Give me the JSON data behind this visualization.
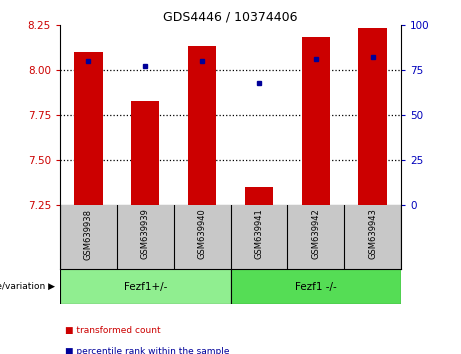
{
  "title": "GDS4446 / 10374406",
  "samples": [
    "GSM639938",
    "GSM639939",
    "GSM639940",
    "GSM639941",
    "GSM639942",
    "GSM639943"
  ],
  "bar_values": [
    8.1,
    7.83,
    8.13,
    7.35,
    8.18,
    8.23
  ],
  "bar_bottom": 7.25,
  "dot_values": [
    80,
    77,
    80,
    68,
    81,
    82
  ],
  "ylim_left": [
    7.25,
    8.25
  ],
  "ylim_right": [
    0,
    100
  ],
  "yticks_left": [
    7.25,
    7.5,
    7.75,
    8.0,
    8.25
  ],
  "yticks_right": [
    0,
    25,
    50,
    75,
    100
  ],
  "groups": [
    {
      "label": "Fezf1+/-",
      "indices": [
        0,
        1,
        2
      ],
      "color": "#90EE90"
    },
    {
      "label": "Fezf1 -/-",
      "indices": [
        3,
        4,
        5
      ],
      "color": "#55DD55"
    }
  ],
  "bar_color": "#CC0000",
  "dot_color": "#000099",
  "bar_width": 0.5,
  "group_label": "genotype/variation",
  "legend_items": [
    {
      "label": "transformed count",
      "color": "#CC0000"
    },
    {
      "label": "percentile rank within the sample",
      "color": "#000099"
    }
  ],
  "tick_color_left": "#CC0000",
  "tick_color_right": "#0000BB",
  "bg_color": "#FFFFFF",
  "plot_bg": "#FFFFFF",
  "xlabel_area_color": "#C8C8C8"
}
